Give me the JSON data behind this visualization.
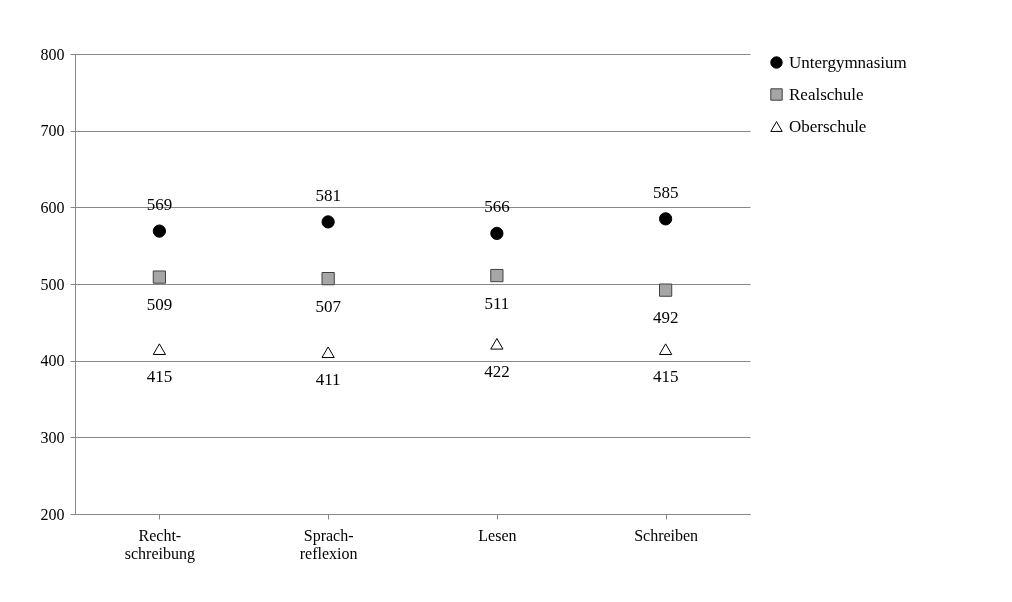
{
  "chart_data": {
    "type": "scatter",
    "categories": [
      "Recht-\nschreibung",
      "Sprach-\nreflexion",
      "Lesen",
      "Schreiben"
    ],
    "series": [
      {
        "name": "Untergymnasium",
        "color": "#000000",
        "marker": "circle",
        "values": [
          569,
          581,
          566,
          585
        ]
      },
      {
        "name": "Realschule",
        "color": "#a6a6a6",
        "marker": "square",
        "values": [
          509,
          507,
          511,
          492
        ]
      },
      {
        "name": "Oberschule",
        "color": "#000000",
        "marker": "triangle",
        "values": [
          415,
          411,
          422,
          415
        ]
      }
    ],
    "ylim": [
      200,
      800
    ],
    "yticks": [
      200,
      300,
      400,
      500,
      600,
      700,
      800
    ],
    "grid": "y",
    "legend": "right",
    "data_labels": true
  }
}
